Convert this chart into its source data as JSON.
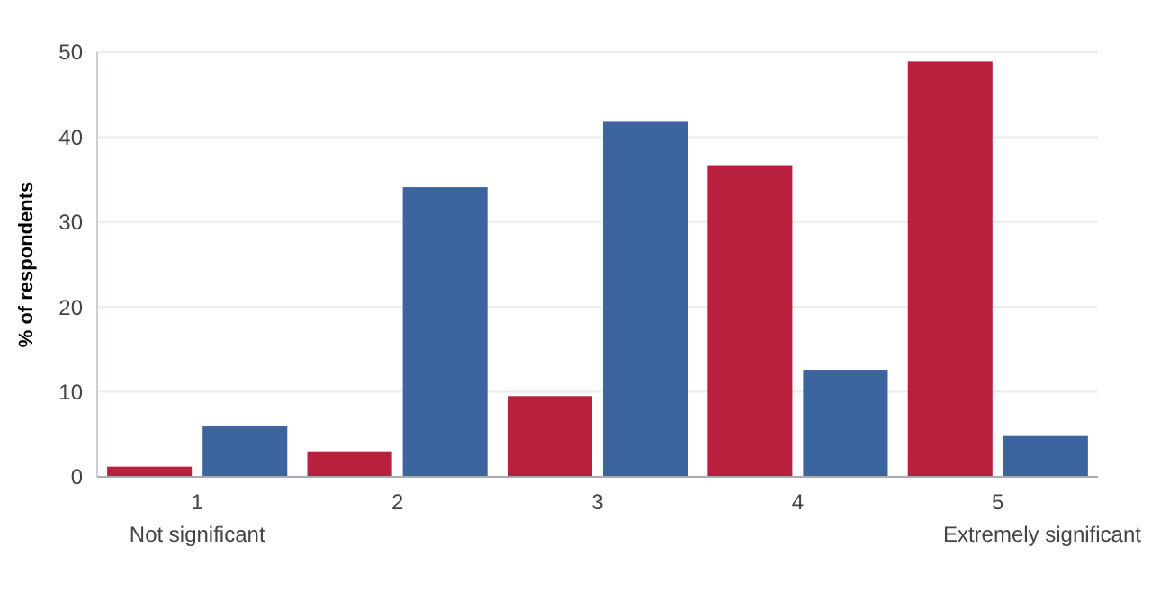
{
  "chart_data": {
    "type": "bar",
    "ylabel": "% of respondents",
    "categories": [
      "1",
      "2",
      "3",
      "4",
      "5"
    ],
    "series": [
      {
        "color": "#b8213d",
        "values": [
          1.2,
          3.0,
          9.5,
          36.7,
          48.9
        ]
      },
      {
        "color": "#3c65a0",
        "values": [
          6.0,
          34.1,
          41.8,
          12.6,
          4.8
        ]
      }
    ],
    "ylim": [
      0,
      50
    ],
    "yticks": [
      0,
      10,
      20,
      30,
      40,
      50
    ],
    "grid": "y",
    "annotations": [
      "Not significant",
      "Extremely significant"
    ]
  }
}
